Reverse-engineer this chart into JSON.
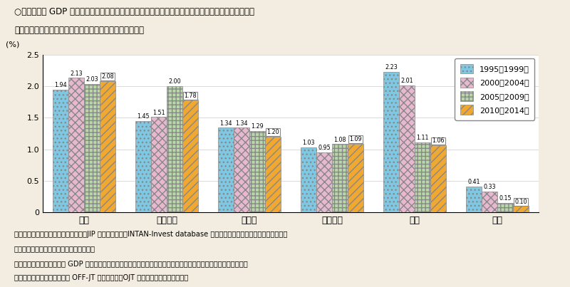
{
  "categories": [
    "米国",
    "フランス",
    "ドイツ",
    "イタリア",
    "英国",
    "日本"
  ],
  "series": [
    {
      "label": "1995～1999年",
      "values": [
        1.94,
        1.45,
        1.34,
        1.03,
        2.23,
        0.41
      ]
    },
    {
      "label": "2000～2004年",
      "values": [
        2.13,
        1.51,
        1.34,
        0.95,
        2.01,
        0.33
      ]
    },
    {
      "label": "2005～2009年",
      "values": [
        2.03,
        2.0,
        1.29,
        1.08,
        1.11,
        0.15
      ]
    },
    {
      "label": "2010～2014年",
      "values": [
        2.08,
        1.78,
        1.2,
        1.09,
        1.06,
        0.1
      ]
    }
  ],
  "ylabel": "(%)",
  "ylim": [
    0,
    2.5
  ],
  "yticks": [
    0,
    0.5,
    1.0,
    1.5,
    2.0,
    2.5
  ],
  "title_line1": "○　我が国の GDP に占める企業の能力開発費の割合は、米国・フランス・ドイツ・イタリア・英国と",
  "title_line2": "　　比較して低い水準にあり、経年的にも低下している。",
  "footnote1": "資料出所　内閣府「国民経済計算」、JIP データベース、INTAN-Invest database を利用して学習院大学経済学部宮川務教",
  "footnote2": "　　　　授が推計したデータをもとに作成",
  "footnote3": "（注）　能力開発費が実質 GDP に占める割合の５箇年平均の推移を示している。なお、ここでは能力開発費は企業内",
  "footnote4": "　　　外の研修費用等を示す OFF-JT の額を指し、OJT に要する費用は含まない。",
  "background_color": "#f2ede0",
  "plot_bg_color": "#ffffff",
  "bar_colors": [
    "#7ec8e3",
    "#e8b8d0",
    "#b8d8a8",
    "#f0a830"
  ],
  "hatches": [
    ".",
    "x",
    "+",
    "/"
  ]
}
